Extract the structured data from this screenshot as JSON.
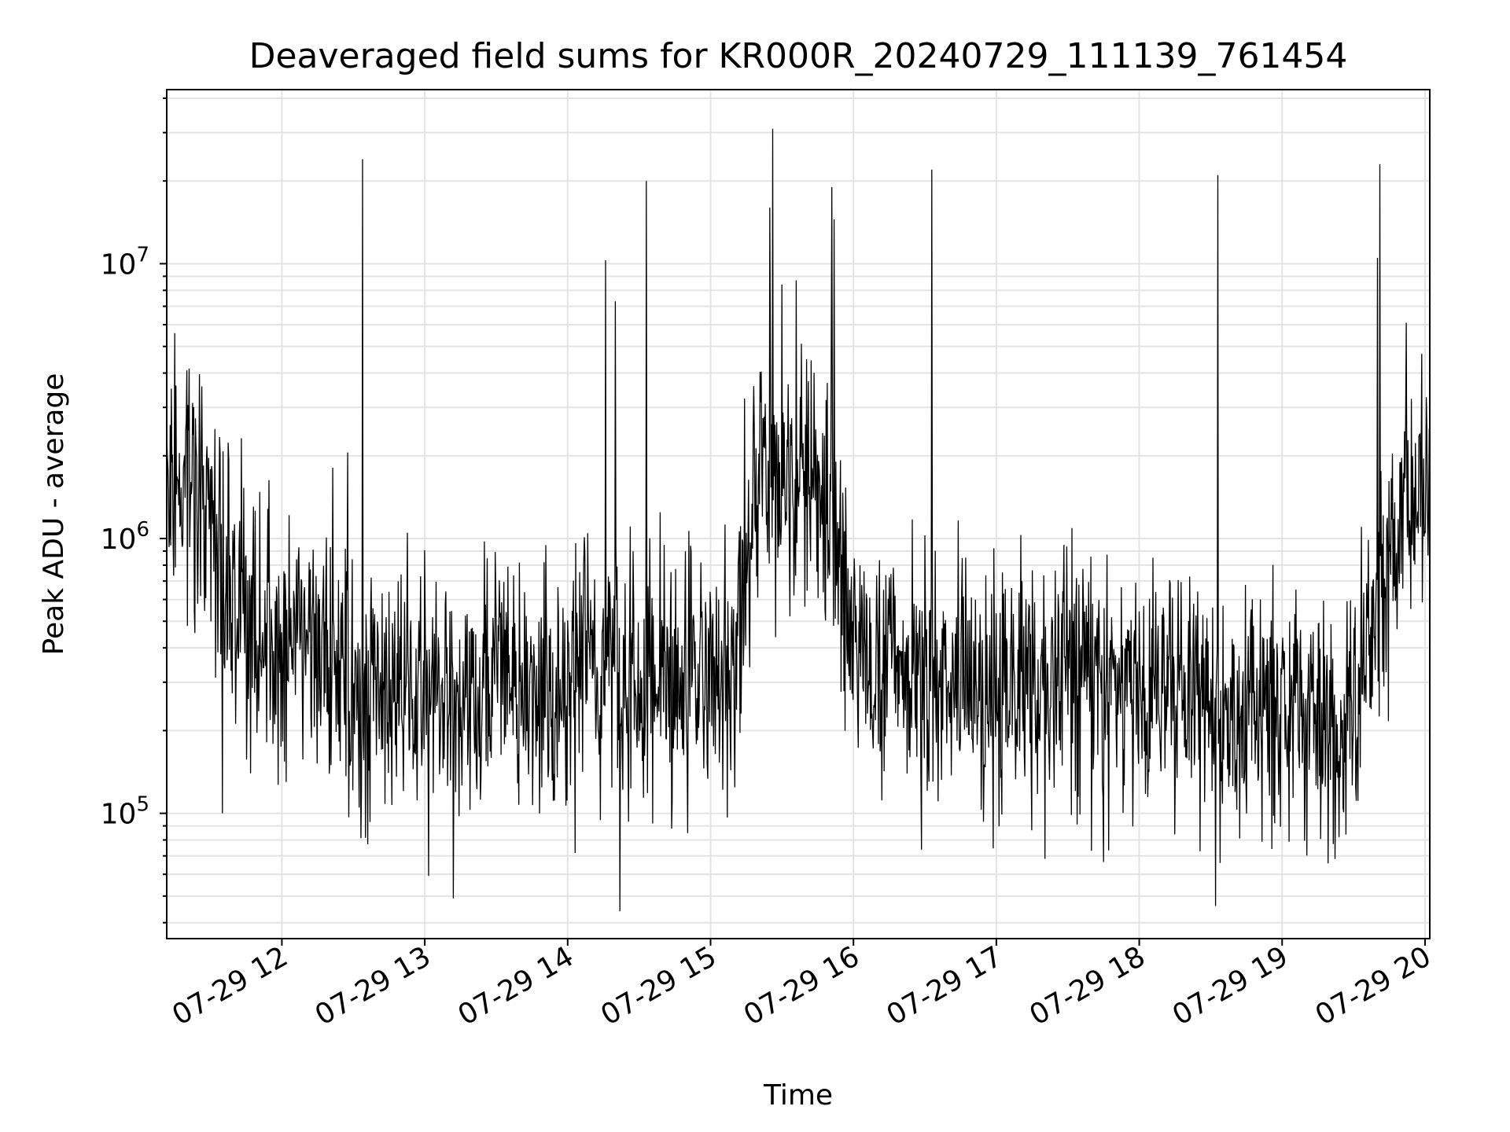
{
  "chart_data": {
    "type": "line",
    "title": "Deaveraged field sums for KR000R_20240729_111139_761454",
    "xlabel": "Time",
    "ylabel": "Peak ADU - average",
    "y_scale": "log",
    "ylim": [
      35000,
      43000000
    ],
    "xlim": [
      "2024-07-29 11:11:39",
      "2024-07-29 20:02:00"
    ],
    "grid": true,
    "line_color": "#000000",
    "x_ticks": [
      "07-29 12",
      "07-29 13",
      "07-29 14",
      "07-29 15",
      "07-29 16",
      "07-29 17",
      "07-29 18",
      "07-29 19",
      "07-29 20"
    ],
    "y_ticks": [
      {
        "base": "10",
        "exp": "5",
        "value": 100000
      },
      {
        "base": "10",
        "exp": "6",
        "value": 1000000
      },
      {
        "base": "10",
        "exp": "7",
        "value": 10000000
      }
    ],
    "series": [
      {
        "x": [
          "2024-07-29 11:11",
          "2024-07-29 11:20",
          "2024-07-29 11:30",
          "2024-07-29 11:40",
          "2024-07-29 11:50",
          "2024-07-29 12:00",
          "2024-07-29 12:10",
          "2024-07-29 12:20",
          "2024-07-29 12:30",
          "2024-07-29 12:40",
          "2024-07-29 12:50",
          "2024-07-29 13:00",
          "2024-07-29 13:10",
          "2024-07-29 13:20",
          "2024-07-29 13:30",
          "2024-07-29 13:40",
          "2024-07-29 13:50",
          "2024-07-29 14:00",
          "2024-07-29 14:10",
          "2024-07-29 14:20",
          "2024-07-29 14:30",
          "2024-07-29 14:40",
          "2024-07-29 14:50",
          "2024-07-29 15:00",
          "2024-07-29 15:10",
          "2024-07-29 15:20",
          "2024-07-29 15:30",
          "2024-07-29 15:40",
          "2024-07-29 15:50",
          "2024-07-29 16:00",
          "2024-07-29 16:10",
          "2024-07-29 16:20",
          "2024-07-29 16:30",
          "2024-07-29 16:40",
          "2024-07-29 16:50",
          "2024-07-29 17:00",
          "2024-07-29 17:10",
          "2024-07-29 17:20",
          "2024-07-29 17:30",
          "2024-07-29 17:40",
          "2024-07-29 17:50",
          "2024-07-29 18:00",
          "2024-07-29 18:10",
          "2024-07-29 18:20",
          "2024-07-29 18:30",
          "2024-07-29 18:40",
          "2024-07-29 18:50",
          "2024-07-29 19:00",
          "2024-07-29 19:10",
          "2024-07-29 19:20",
          "2024-07-29 19:30",
          "2024-07-29 19:40",
          "2024-07-29 19:50",
          "2024-07-29 20:00"
        ],
        "values": [
          1800000,
          1600000,
          1200000,
          600000,
          450000,
          420000,
          400000,
          350000,
          330000,
          300000,
          280000,
          280000,
          270000,
          260000,
          270000,
          280000,
          280000,
          290000,
          380000,
          350000,
          300000,
          290000,
          320000,
          300000,
          330000,
          1600000,
          1500000,
          1400000,
          1300000,
          380000,
          350000,
          330000,
          320000,
          300000,
          290000,
          290000,
          290000,
          300000,
          300000,
          300000,
          300000,
          290000,
          280000,
          270000,
          270000,
          260000,
          250000,
          240000,
          230000,
          210000,
          190000,
          600000,
          1300000,
          1400000
        ]
      }
    ],
    "spikes": [
      {
        "x": "2024-07-29 11:35",
        "value": 100000
      },
      {
        "x": "2024-07-29 12:34",
        "value": 24000000
      },
      {
        "x": "2024-07-29 13:12",
        "value": 49000.0
      },
      {
        "x": "2024-07-29 14:16",
        "value": 10300000
      },
      {
        "x": "2024-07-29 14:20",
        "value": 7300000
      },
      {
        "x": "2024-07-29 14:33",
        "value": 20000000
      },
      {
        "x": "2024-07-29 14:22",
        "value": 44000
      },
      {
        "x": "2024-07-29 15:26",
        "value": 31000000
      },
      {
        "x": "2024-07-29 15:25",
        "value": 16000000
      },
      {
        "x": "2024-07-29 15:30",
        "value": 8400000
      },
      {
        "x": "2024-07-29 15:36",
        "value": 8700000
      },
      {
        "x": "2024-07-29 15:51",
        "value": 19000000
      },
      {
        "x": "2024-07-29 15:52",
        "value": 14500000
      },
      {
        "x": "2024-07-29 16:33",
        "value": 22000000
      },
      {
        "x": "2024-07-29 18:33",
        "value": 21000000
      },
      {
        "x": "2024-07-29 18:32",
        "value": 46000
      },
      {
        "x": "2024-07-29 19:41",
        "value": 23000000
      },
      {
        "x": "2024-07-29 19:40",
        "value": 10500000
      },
      {
        "x": "2024-07-29 19:52",
        "value": 6100000
      }
    ]
  }
}
